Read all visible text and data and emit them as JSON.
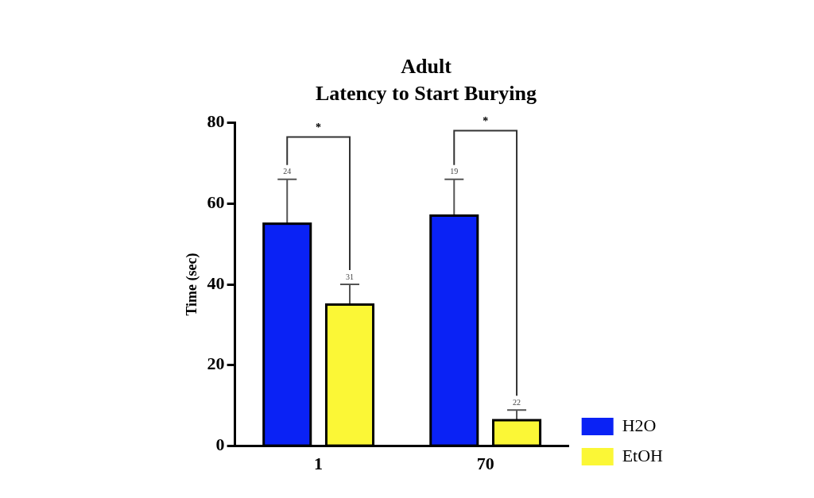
{
  "chart_data": {
    "type": "bar",
    "title": "Adult",
    "subtitle": "Latency to Start Burying",
    "ylabel": "Time (sec)",
    "categories": [
      "1",
      "70"
    ],
    "series": [
      {
        "name": "H2O",
        "color": "#0a22f5",
        "values": [
          55,
          57
        ],
        "errors": [
          [
            55,
            66
          ],
          [
            57,
            66
          ]
        ]
      },
      {
        "name": "EtOH",
        "color": "#fbf736",
        "values": [
          35,
          6.4
        ],
        "errors": [
          [
            35,
            40
          ],
          [
            6.4,
            8.9
          ]
        ]
      }
    ],
    "ylim": [
      0,
      80
    ],
    "yticks": [
      0,
      20,
      40,
      60,
      80
    ],
    "grid": false,
    "legend": "right",
    "annotations": [
      "24",
      "31",
      "*",
      "19",
      "22",
      "*"
    ]
  }
}
